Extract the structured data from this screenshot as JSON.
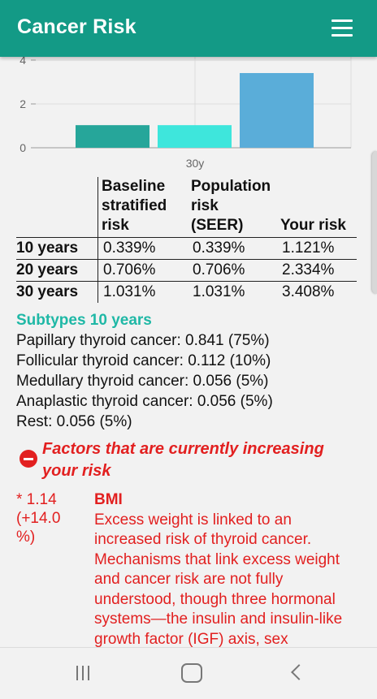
{
  "appbar": {
    "title": "Cancer Risk",
    "menu_icon": "hamburger-menu-icon"
  },
  "chart_data": {
    "type": "bar",
    "categories": [
      "30y"
    ],
    "series": [
      {
        "values": [
          1.031
        ],
        "color": "#26a69a"
      },
      {
        "values": [
          1.031
        ],
        "color": "#3ee6dc"
      },
      {
        "values": [
          3.408
        ],
        "color": "#5aadd9"
      }
    ],
    "ylim": [
      0,
      4
    ],
    "yticks": [
      "4",
      "2",
      "0"
    ],
    "grid": true
  },
  "table": {
    "headers": [
      "Baseline stratified risk",
      "Population risk (SEER)",
      "Your risk"
    ],
    "rows": [
      {
        "label": "10 years",
        "baseline": "0.339%",
        "population": "0.339%",
        "yours": "1.121%"
      },
      {
        "label": "20 years",
        "baseline": "0.706%",
        "population": "0.706%",
        "yours": "2.334%"
      },
      {
        "label": "30 years",
        "baseline": "1.031%",
        "population": "1.031%",
        "yours": "3.408%"
      }
    ]
  },
  "subtypes": {
    "heading": "Subtypes 10 years",
    "items": [
      "Papillary thyroid cancer: 0.841 (75%)",
      "Follicular thyroid cancer: 0.112 (10%)",
      "Medullary thyroid cancer: 0.056 (5%)",
      "Anaplastic thyroid cancer: 0.056 (5%)",
      "Rest: 0.056 (5%)"
    ]
  },
  "factors": {
    "title": "Factors that are currently increasing your risk",
    "items": [
      {
        "multiplier": "* 1.14",
        "change": "(+14.0 %)",
        "name": "BMI",
        "description": "Excess weight is linked to an increased risk of thyroid cancer. Mechanisms that link excess weight and cancer risk are not fully understood, though three hormonal systems—the insulin and insulin-like growth factor (IGF) axis, sex"
      }
    ]
  },
  "navbar": {
    "icons": [
      "recents-icon",
      "home-icon",
      "back-icon"
    ]
  }
}
